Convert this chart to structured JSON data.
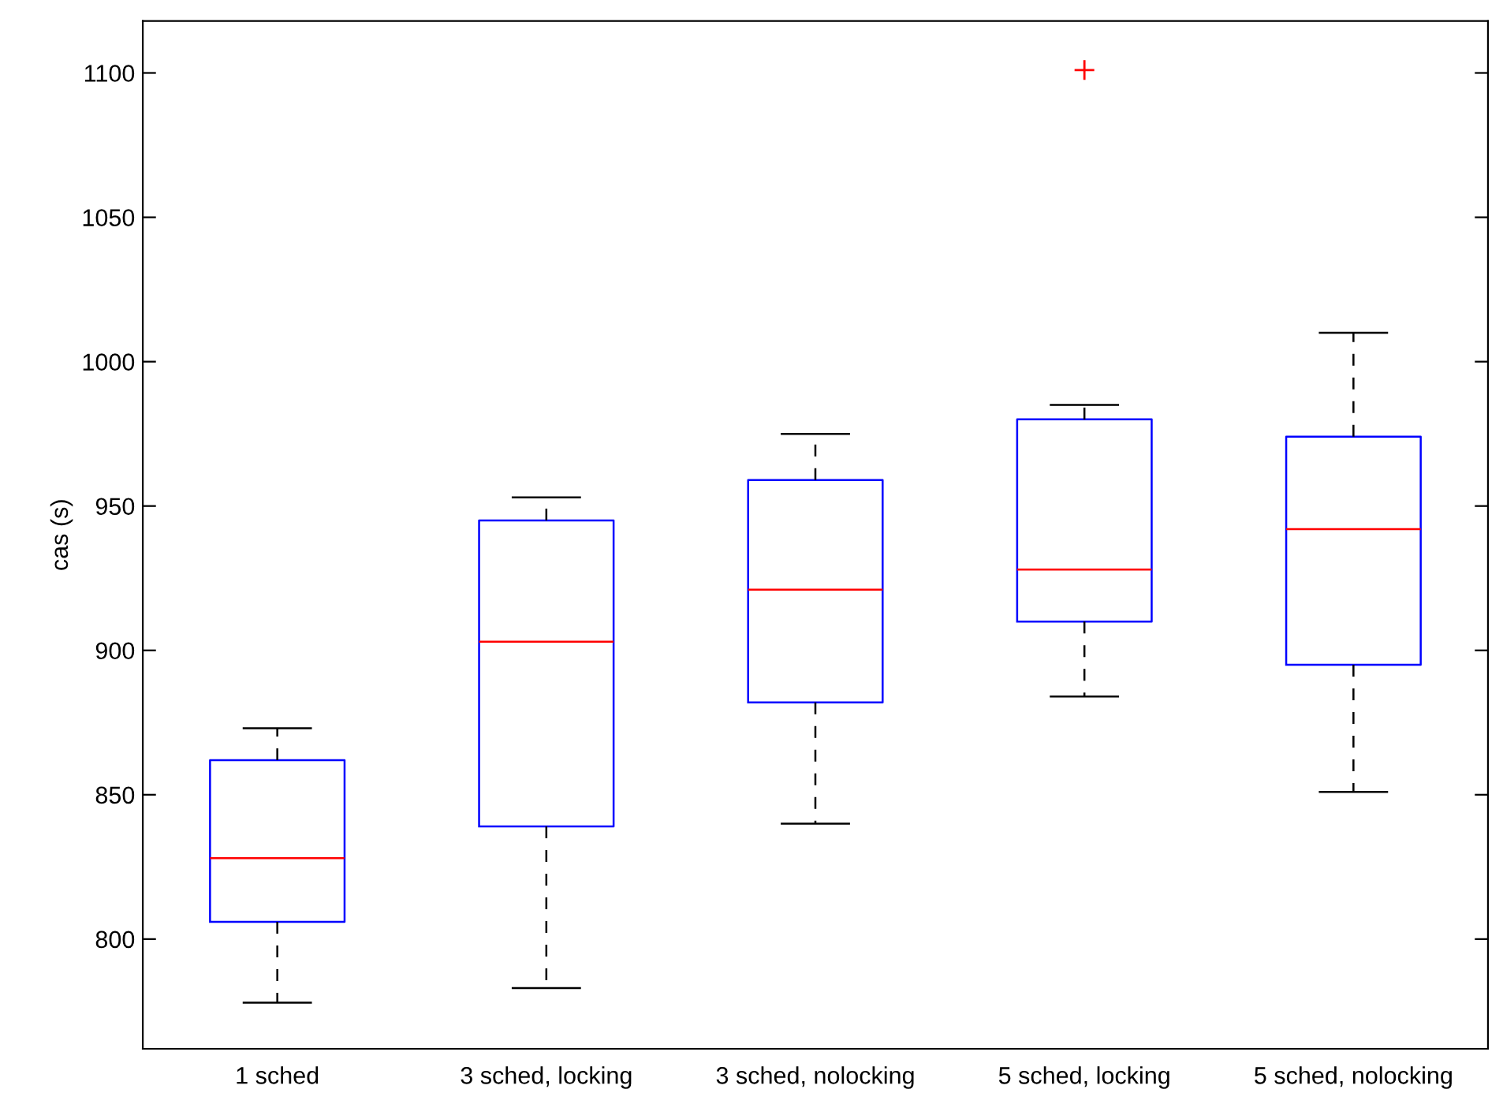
{
  "chart_data": {
    "type": "box",
    "ylabel": "cas (s)",
    "categories": [
      "1 sched",
      "3 sched, locking",
      "3 sched, nolocking",
      "5 sched, locking",
      "5 sched, nolocking"
    ],
    "boxes": [
      {
        "low": 778,
        "q1": 806,
        "median": 828,
        "q3": 862,
        "high": 873
      },
      {
        "low": 783,
        "q1": 839,
        "median": 903,
        "q3": 945,
        "high": 953
      },
      {
        "low": 840,
        "q1": 882,
        "median": 921,
        "q3": 959,
        "high": 975
      },
      {
        "low": 884,
        "q1": 910,
        "median": 928,
        "q3": 980,
        "high": 985,
        "outliers": [
          1101
        ]
      },
      {
        "low": 851,
        "q1": 895,
        "median": 942,
        "q3": 974,
        "high": 1010
      }
    ],
    "color": "#0000ff",
    "ylim": [
      762,
      1118
    ],
    "yticks": [
      800,
      850,
      900,
      950,
      1000,
      1050,
      1100
    ]
  }
}
